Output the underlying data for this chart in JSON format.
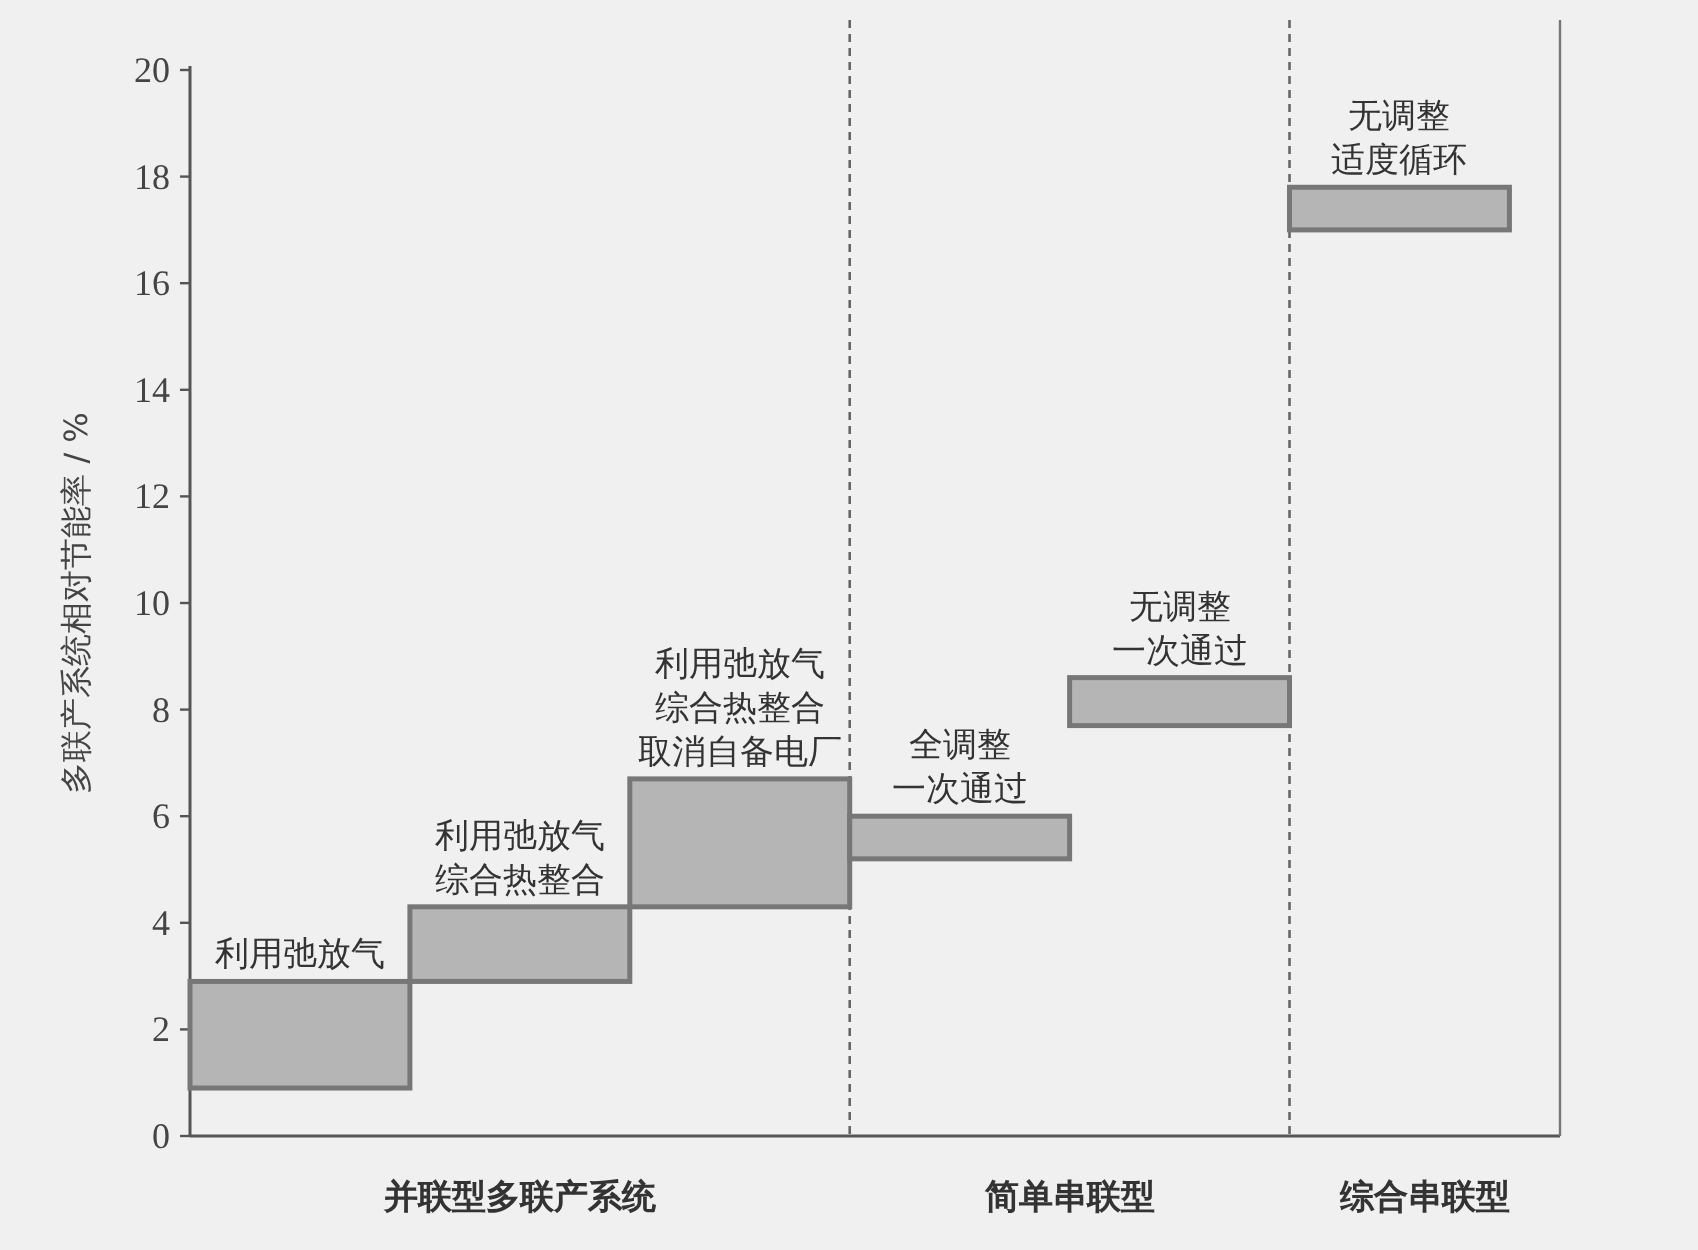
{
  "chart_data": {
    "type": "bar",
    "ylabel": "多联产系统相对节能率 / %",
    "categories": [
      "利用弛放气",
      "利用弛放气综合热整合",
      "利用弛放气综合热整合取消自备电厂",
      "全调整一次通过",
      "无调整一次通过",
      "无调整适度循环"
    ],
    "values": [
      2.0,
      1.4,
      2.4,
      0.8,
      0.9,
      0.8
    ],
    "base": [
      0.9,
      2.9,
      4.3,
      5.2,
      7.7,
      17.0
    ],
    "color": "#b5b5b5",
    "ylim": [
      0,
      20
    ],
    "yticks": [
      0,
      2,
      4,
      6,
      8,
      10,
      12,
      14,
      16,
      18,
      20
    ],
    "annotations": [
      "并联型多联产系统",
      "简单串联型",
      "综合串联型"
    ],
    "grid": false
  }
}
